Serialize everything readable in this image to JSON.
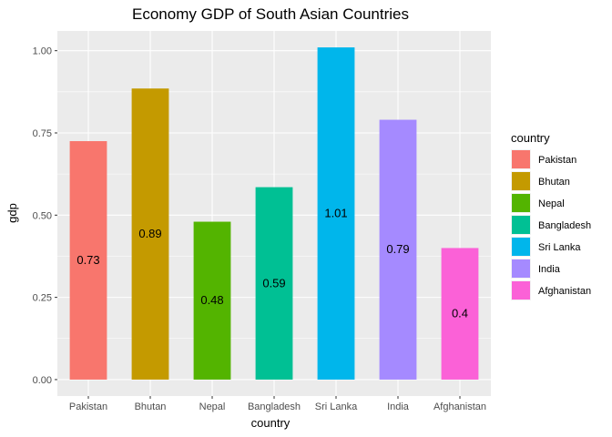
{
  "chart_data": {
    "type": "bar",
    "title": "Economy GDP of South Asian Countries",
    "xlabel": "country",
    "ylabel": "gdp",
    "categories": [
      "Pakistan",
      "Bhutan",
      "Nepal",
      "Bangladesh",
      "Sri Lanka",
      "India",
      "Afghanistan"
    ],
    "values": [
      0.725,
      0.885,
      0.48,
      0.585,
      1.01,
      0.79,
      0.4
    ],
    "data_labels": [
      "0.73",
      "0.89",
      "0.48",
      "0.59",
      "1.01",
      "0.79",
      "0.4"
    ],
    "colors": [
      "#F8766D",
      "#C49A00",
      "#53B400",
      "#00C094",
      "#00B6EB",
      "#A58AFF",
      "#FB61D7"
    ],
    "ylim": [
      -0.05,
      1.06
    ],
    "yticks": [
      0.0,
      0.25,
      0.5,
      0.75,
      1.0
    ],
    "ytick_labels": [
      "0.00",
      "0.25",
      "0.50",
      "0.75",
      "1.00"
    ],
    "grid": true,
    "panel_background": "#EBEBEB",
    "grid_color": "#FFFFFF",
    "legend": {
      "title": "country",
      "position": "right",
      "entries": [
        "Pakistan",
        "Bhutan",
        "Nepal",
        "Bangladesh",
        "Sri Lanka",
        "India",
        "Afghanistan"
      ]
    }
  }
}
